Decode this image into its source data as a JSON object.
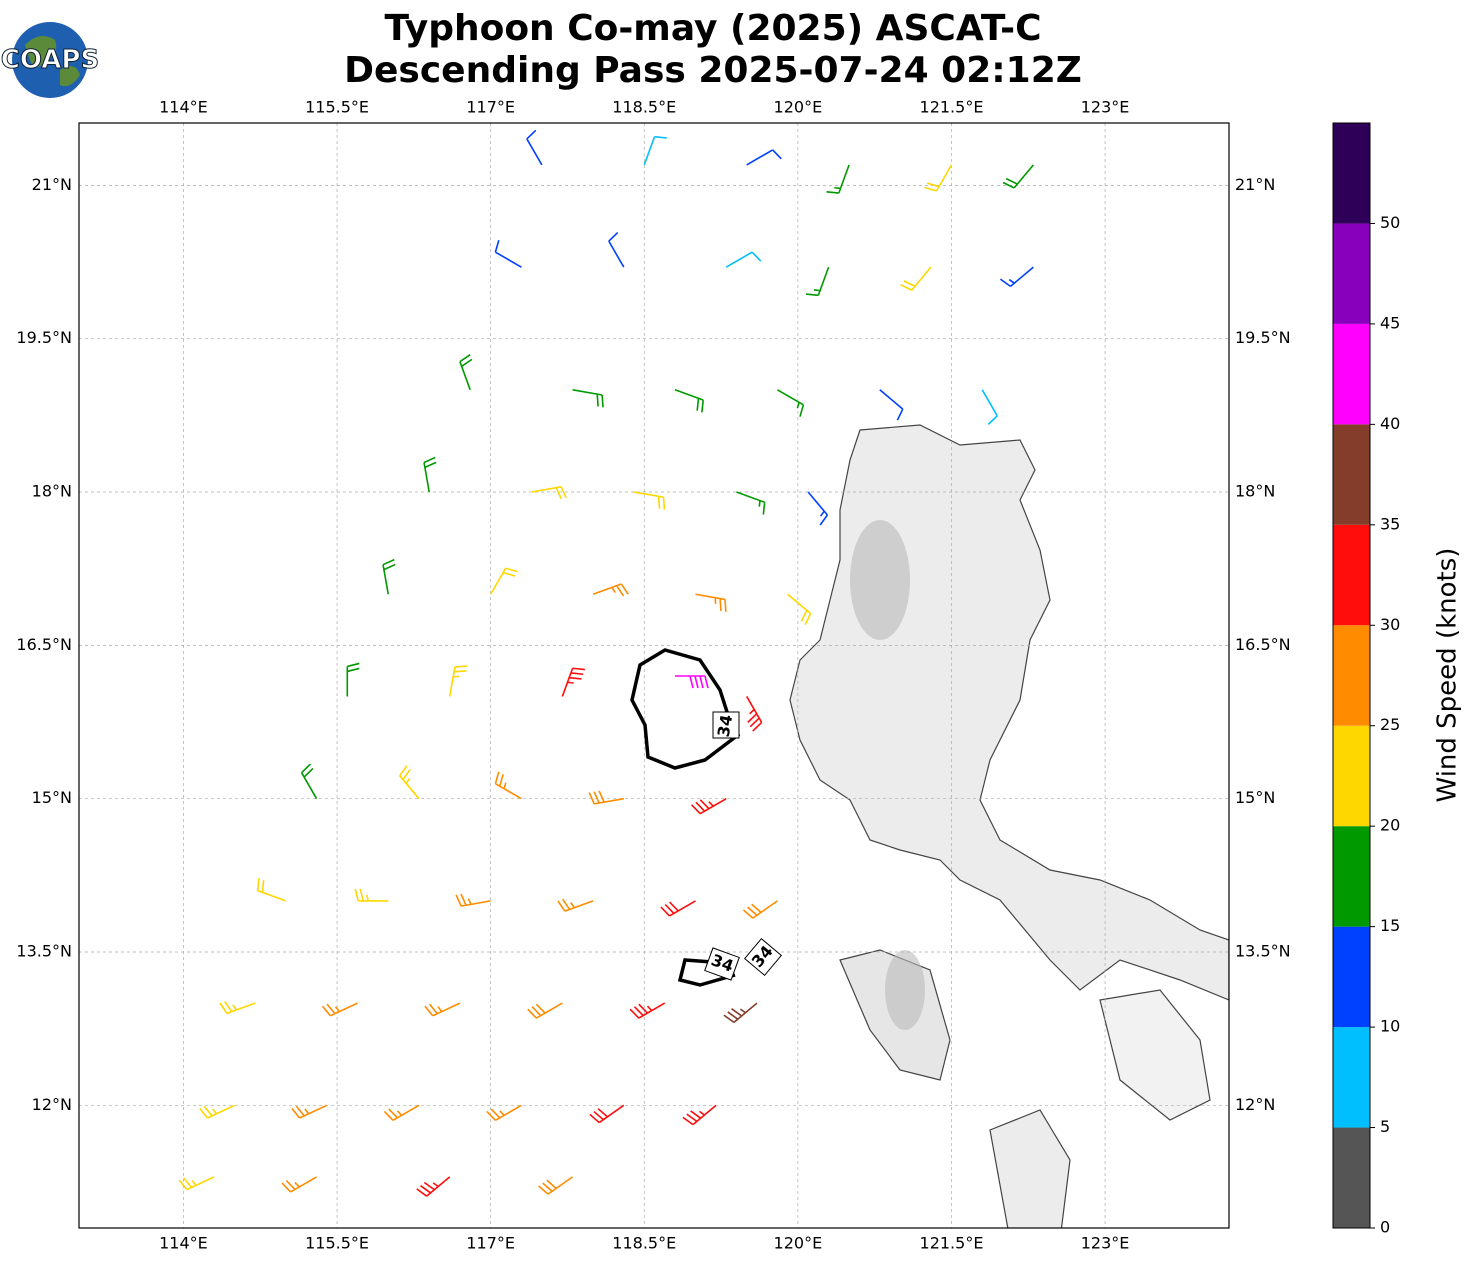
{
  "header": {
    "logo_text": "COAPS",
    "title_lines": [
      "Typhoon Co-may (2025) ASCAT-C",
      "Descending Pass 2025-07-24 02:12Z"
    ]
  },
  "map": {
    "xlim": [
      112.98,
      124.21
    ],
    "ylim": [
      10.8,
      21.61
    ],
    "xticks": [
      {
        "value": 114,
        "label": "114°E"
      },
      {
        "value": 115.5,
        "label": "115.5°E"
      },
      {
        "value": 117,
        "label": "117°E"
      },
      {
        "value": 118.5,
        "label": "118.5°E"
      },
      {
        "value": 120,
        "label": "120°E"
      },
      {
        "value": 121.5,
        "label": "121.5°E"
      },
      {
        "value": 123,
        "label": "123°E"
      }
    ],
    "yticks": [
      {
        "value": 12,
        "label": "12°N"
      },
      {
        "value": 13.5,
        "label": "13.5°N"
      },
      {
        "value": 15,
        "label": "15°N"
      },
      {
        "value": 16.5,
        "label": "16.5°N"
      },
      {
        "value": 18,
        "label": "18°N"
      },
      {
        "value": 19.5,
        "label": "19.5°N"
      },
      {
        "value": 21,
        "label": "21°N"
      }
    ],
    "grid": true,
    "contour_level": 34,
    "barbs": [
      [
        117.5,
        21.2,
        12,
        330
      ],
      [
        118.5,
        21.2,
        8,
        20
      ],
      [
        119.5,
        21.2,
        10,
        60
      ],
      [
        120.5,
        21.2,
        17,
        200
      ],
      [
        121.5,
        21.2,
        22,
        210
      ],
      [
        122.3,
        21.2,
        18,
        220
      ],
      [
        117.3,
        20.2,
        12,
        300
      ],
      [
        118.3,
        20.2,
        12,
        330
      ],
      [
        119.3,
        20.2,
        8,
        60
      ],
      [
        120.3,
        20.2,
        17,
        200
      ],
      [
        121.3,
        20.2,
        22,
        220
      ],
      [
        122.3,
        20.2,
        13,
        230
      ],
      [
        116.8,
        19.0,
        18,
        340
      ],
      [
        117.8,
        19.0,
        18,
        100
      ],
      [
        118.8,
        19.0,
        18,
        110
      ],
      [
        119.8,
        19.0,
        15,
        120
      ],
      [
        120.8,
        19.0,
        12,
        130
      ],
      [
        121.8,
        19.0,
        8,
        150
      ],
      [
        116.4,
        18.0,
        18,
        350
      ],
      [
        117.4,
        18.0,
        22,
        80
      ],
      [
        118.4,
        18.0,
        22,
        100
      ],
      [
        119.4,
        18.0,
        17,
        110
      ],
      [
        120.1,
        18.0,
        13,
        140
      ],
      [
        116.0,
        17.0,
        18,
        350
      ],
      [
        117.0,
        17.0,
        22,
        30
      ],
      [
        118.0,
        17.0,
        26,
        70
      ],
      [
        119.0,
        17.0,
        27,
        100
      ],
      [
        119.9,
        17.0,
        20,
        130
      ],
      [
        115.6,
        16.0,
        18,
        0
      ],
      [
        116.6,
        16.0,
        24,
        10
      ],
      [
        117.7,
        16.0,
        33,
        20
      ],
      [
        118.8,
        16.2,
        40,
        90
      ],
      [
        119.5,
        16.0,
        33,
        150
      ],
      [
        115.3,
        15.0,
        18,
        330
      ],
      [
        116.3,
        15.0,
        23,
        320
      ],
      [
        117.3,
        15.0,
        25,
        300
      ],
      [
        118.3,
        15.0,
        28,
        260
      ],
      [
        119.3,
        15.0,
        33,
        240
      ],
      [
        115.0,
        14.0,
        20,
        290
      ],
      [
        116.0,
        14.0,
        23,
        270
      ],
      [
        117.0,
        14.0,
        27,
        260
      ],
      [
        118.0,
        14.0,
        27,
        250
      ],
      [
        119.0,
        14.0,
        32,
        240
      ],
      [
        119.8,
        14.0,
        28,
        235
      ],
      [
        114.7,
        13.0,
        23,
        250
      ],
      [
        115.7,
        13.0,
        27,
        245
      ],
      [
        116.7,
        13.0,
        27,
        245
      ],
      [
        117.7,
        13.0,
        28,
        240
      ],
      [
        118.7,
        13.0,
        33,
        240
      ],
      [
        119.6,
        13.0,
        37,
        230
      ],
      [
        114.5,
        12.0,
        23,
        245
      ],
      [
        115.4,
        12.0,
        25,
        245
      ],
      [
        116.3,
        12.0,
        27,
        240
      ],
      [
        117.3,
        12.0,
        27,
        240
      ],
      [
        118.3,
        12.0,
        30,
        235
      ],
      [
        119.2,
        12.0,
        33,
        230
      ],
      [
        114.3,
        11.3,
        23,
        245
      ],
      [
        115.3,
        11.3,
        25,
        240
      ],
      [
        116.6,
        11.3,
        33,
        230
      ],
      [
        117.8,
        11.3,
        28,
        235
      ]
    ]
  },
  "colorbar": {
    "label": "Wind Speed (knots)",
    "lim": [
      0,
      55
    ],
    "bounds": [
      0,
      5,
      10,
      15,
      20,
      25,
      30,
      35,
      40,
      45,
      50,
      55
    ],
    "colors": [
      "#555555",
      "#00bfff",
      "#0040ff",
      "#009900",
      "#ffd700",
      "#ff8c00",
      "#ff0d0d",
      "#833d2a",
      "#ff00ff",
      "#8800bb",
      "#2e0057"
    ],
    "ticks": [
      0,
      5,
      10,
      15,
      20,
      25,
      30,
      35,
      40,
      45,
      50
    ]
  }
}
